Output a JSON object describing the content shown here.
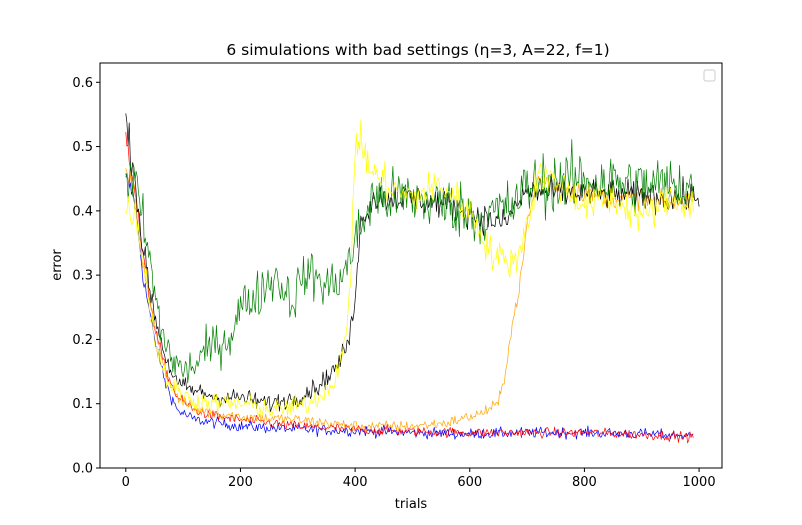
{
  "chart_data": {
    "type": "line",
    "title": "6 simulations with bad settings (η=3, A=22, f=1)",
    "xlabel": "trials",
    "ylabel": "error",
    "xlim": [
      -45,
      1040
    ],
    "ylim": [
      0.0,
      0.63
    ],
    "xticks": [
      0,
      200,
      400,
      600,
      800,
      1000
    ],
    "xtick_labels": [
      "0",
      "200",
      "400",
      "600",
      "800",
      "1000"
    ],
    "yticks": [
      0.0,
      0.1,
      0.2,
      0.3,
      0.4,
      0.5,
      0.6
    ],
    "ytick_labels": [
      "0.0",
      "0.1",
      "0.2",
      "0.3",
      "0.4",
      "0.5",
      "0.6"
    ],
    "grid": false,
    "legend": {
      "placement": "top-right",
      "entries": []
    },
    "series": [
      {
        "color": "#0000ff",
        "noise": 0.012,
        "points": [
          [
            0,
            0.45
          ],
          [
            15,
            0.42
          ],
          [
            30,
            0.3
          ],
          [
            50,
            0.2
          ],
          [
            70,
            0.13
          ],
          [
            90,
            0.09
          ],
          [
            120,
            0.075
          ],
          [
            160,
            0.07
          ],
          [
            200,
            0.065
          ],
          [
            300,
            0.06
          ],
          [
            400,
            0.058
          ],
          [
            500,
            0.055
          ],
          [
            600,
            0.053
          ],
          [
            700,
            0.055
          ],
          [
            800,
            0.055
          ],
          [
            900,
            0.053
          ],
          [
            990,
            0.05
          ]
        ]
      },
      {
        "color": "#ff0000",
        "noise": 0.011,
        "points": [
          [
            0,
            0.52
          ],
          [
            15,
            0.44
          ],
          [
            30,
            0.33
          ],
          [
            50,
            0.22
          ],
          [
            70,
            0.15
          ],
          [
            90,
            0.11
          ],
          [
            120,
            0.09
          ],
          [
            160,
            0.08
          ],
          [
            200,
            0.075
          ],
          [
            300,
            0.065
          ],
          [
            400,
            0.06
          ],
          [
            500,
            0.057
          ],
          [
            600,
            0.055
          ],
          [
            700,
            0.055
          ],
          [
            800,
            0.055
          ],
          [
            900,
            0.052
          ],
          [
            990,
            0.048
          ]
        ]
      },
      {
        "color": "#ffa500",
        "noise": 0.012,
        "points": [
          [
            0,
            0.46
          ],
          [
            15,
            0.43
          ],
          [
            30,
            0.32
          ],
          [
            50,
            0.22
          ],
          [
            70,
            0.15
          ],
          [
            90,
            0.11
          ],
          [
            120,
            0.09
          ],
          [
            160,
            0.085
          ],
          [
            200,
            0.08
          ],
          [
            300,
            0.075
          ],
          [
            400,
            0.065
          ],
          [
            500,
            0.065
          ],
          [
            560,
            0.07
          ],
          [
            620,
            0.085
          ],
          [
            650,
            0.1
          ],
          [
            660,
            0.14
          ],
          [
            670,
            0.2
          ],
          [
            680,
            0.25
          ],
          [
            690,
            0.3
          ],
          [
            700,
            0.38
          ],
          [
            720,
            0.45
          ],
          [
            750,
            0.44
          ],
          [
            800,
            0.43
          ],
          [
            850,
            0.42
          ],
          [
            900,
            0.42
          ],
          [
            950,
            0.41
          ],
          [
            990,
            0.42
          ]
        ]
      },
      {
        "color": "#000000",
        "noise": 0.018,
        "points": [
          [
            0,
            0.54
          ],
          [
            15,
            0.46
          ],
          [
            30,
            0.34
          ],
          [
            50,
            0.24
          ],
          [
            70,
            0.17
          ],
          [
            90,
            0.13
          ],
          [
            120,
            0.12
          ],
          [
            160,
            0.11
          ],
          [
            200,
            0.11
          ],
          [
            250,
            0.1
          ],
          [
            300,
            0.11
          ],
          [
            340,
            0.13
          ],
          [
            370,
            0.16
          ],
          [
            390,
            0.2
          ],
          [
            398,
            0.25
          ],
          [
            402,
            0.3
          ],
          [
            410,
            0.38
          ],
          [
            430,
            0.42
          ],
          [
            500,
            0.42
          ],
          [
            560,
            0.41
          ],
          [
            620,
            0.39
          ],
          [
            660,
            0.38
          ],
          [
            690,
            0.42
          ],
          [
            700,
            0.43
          ],
          [
            1000,
            0.42
          ]
        ]
      },
      {
        "color": "#008000",
        "noise": 0.035,
        "points": [
          [
            0,
            0.46
          ],
          [
            20,
            0.43
          ],
          [
            40,
            0.33
          ],
          [
            60,
            0.22
          ],
          [
            80,
            0.17
          ],
          [
            100,
            0.15
          ],
          [
            120,
            0.16
          ],
          [
            150,
            0.19
          ],
          [
            180,
            0.2
          ],
          [
            200,
            0.25
          ],
          [
            230,
            0.27
          ],
          [
            260,
            0.3
          ],
          [
            290,
            0.26
          ],
          [
            310,
            0.3
          ],
          [
            330,
            0.3
          ],
          [
            350,
            0.28
          ],
          [
            380,
            0.3
          ],
          [
            400,
            0.35
          ],
          [
            430,
            0.42
          ],
          [
            500,
            0.42
          ],
          [
            560,
            0.41
          ],
          [
            620,
            0.39
          ],
          [
            680,
            0.41
          ],
          [
            700,
            0.44
          ],
          [
            800,
            0.45
          ],
          [
            900,
            0.44
          ],
          [
            990,
            0.44
          ]
        ]
      },
      {
        "color": "#ffff00",
        "noise": 0.022,
        "points": [
          [
            0,
            0.4
          ],
          [
            15,
            0.4
          ],
          [
            30,
            0.33
          ],
          [
            50,
            0.2
          ],
          [
            70,
            0.14
          ],
          [
            100,
            0.11
          ],
          [
            150,
            0.1
          ],
          [
            200,
            0.1
          ],
          [
            260,
            0.09
          ],
          [
            320,
            0.1
          ],
          [
            360,
            0.13
          ],
          [
            385,
            0.2
          ],
          [
            392,
            0.3
          ],
          [
            398,
            0.45
          ],
          [
            402,
            0.52
          ],
          [
            410,
            0.5
          ],
          [
            430,
            0.46
          ],
          [
            470,
            0.43
          ],
          [
            500,
            0.42
          ],
          [
            550,
            0.44
          ],
          [
            600,
            0.4
          ],
          [
            640,
            0.33
          ],
          [
            680,
            0.32
          ],
          [
            700,
            0.38
          ],
          [
            720,
            0.46
          ],
          [
            760,
            0.44
          ],
          [
            800,
            0.41
          ],
          [
            850,
            0.42
          ],
          [
            900,
            0.39
          ],
          [
            950,
            0.42
          ],
          [
            990,
            0.41
          ]
        ]
      }
    ]
  }
}
